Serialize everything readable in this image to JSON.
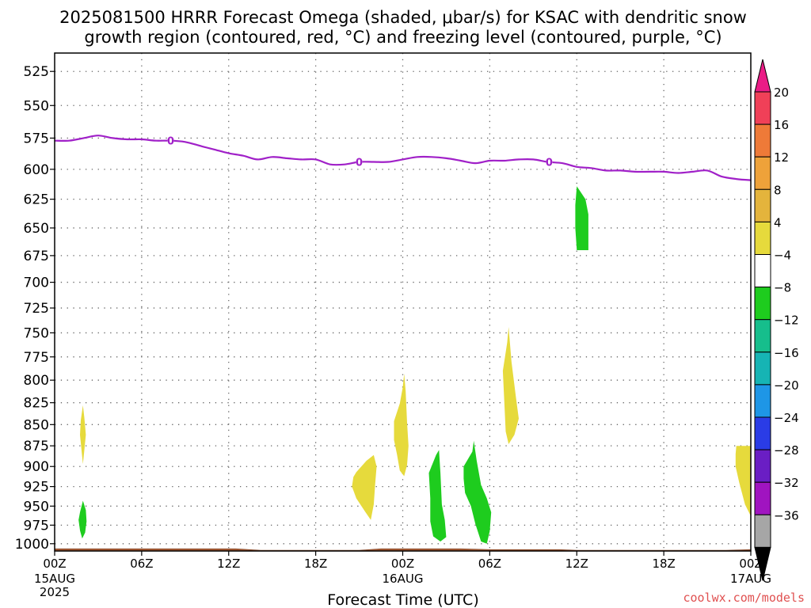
{
  "title_line1": "2025081500 HRRR Forecast Omega (shaded, μbar/s) for KSAC with dendritic snow",
  "title_line2": "growth region (contoured, red, °C) and freezing level (contoured, purple, °C)",
  "credit": "coolwx.com/models",
  "chart_data": {
    "type": "contour",
    "title": "2025081500 HRRR Forecast Omega (shaded, μbar/s) for KSAC with dendritic snow growth region (contoured, red, °C) and freezing level (contoured, purple, °C)",
    "xlabel": "Forecast Time (UTC)",
    "ylabel": "",
    "grid": true,
    "x_range_hours": [
      0,
      48
    ],
    "y_range_hPa": [
      1010,
      512
    ],
    "y_scale": "log",
    "x_ticks": [
      {
        "hour": 0,
        "label": "00Z",
        "sub": [
          "15AUG",
          "2025"
        ]
      },
      {
        "hour": 6,
        "label": "06Z",
        "sub": []
      },
      {
        "hour": 12,
        "label": "12Z",
        "sub": []
      },
      {
        "hour": 18,
        "label": "18Z",
        "sub": []
      },
      {
        "hour": 24,
        "label": "00Z",
        "sub": [
          "16AUG"
        ]
      },
      {
        "hour": 30,
        "label": "06Z",
        "sub": []
      },
      {
        "hour": 36,
        "label": "12Z",
        "sub": []
      },
      {
        "hour": 42,
        "label": "18Z",
        "sub": []
      },
      {
        "hour": 48,
        "label": "00Z",
        "sub": [
          "17AUG"
        ]
      }
    ],
    "y_ticks": [
      525,
      550,
      575,
      600,
      625,
      650,
      675,
      700,
      725,
      750,
      775,
      800,
      825,
      850,
      875,
      900,
      925,
      950,
      975,
      1000
    ],
    "colorbar": {
      "labels": [
        "20",
        "16",
        "12",
        "8",
        "4",
        "−4",
        "−8",
        "−12",
        "−16",
        "−20",
        "−24",
        "−28",
        "−32",
        "−36"
      ],
      "colors": [
        "#f04058",
        "#ee7a38",
        "#eea23a",
        "#e4b43c",
        "#e6da3c",
        "#ffffff",
        "#1ecc1e",
        "#16be8c",
        "#16b4b4",
        "#1e96e6",
        "#2a3ce6",
        "#6a1ec4",
        "#a014c0",
        "#a6a6a6"
      ],
      "top_arrow_color": "#ea1c86",
      "bottom_arrow_color": "#000000"
    },
    "freezing_level": {
      "color": "#a020c8",
      "label": "0",
      "label_hours": [
        8.0,
        21.0,
        34.1
      ],
      "points": [
        [
          0,
          577
        ],
        [
          1,
          577
        ],
        [
          2,
          575
        ],
        [
          3,
          573
        ],
        [
          4,
          575
        ],
        [
          5,
          576
        ],
        [
          6,
          576
        ],
        [
          7,
          577
        ],
        [
          8,
          577
        ],
        [
          9,
          578
        ],
        [
          10,
          581
        ],
        [
          11,
          584
        ],
        [
          12,
          587
        ],
        [
          13,
          589
        ],
        [
          14,
          592
        ],
        [
          15,
          590
        ],
        [
          16,
          591
        ],
        [
          17,
          592
        ],
        [
          18,
          592
        ],
        [
          19,
          596
        ],
        [
          20,
          596
        ],
        [
          21,
          594
        ],
        [
          22,
          594
        ],
        [
          23,
          594
        ],
        [
          24,
          592
        ],
        [
          25,
          590
        ],
        [
          26,
          590
        ],
        [
          27,
          591
        ],
        [
          28,
          593
        ],
        [
          29,
          595
        ],
        [
          30,
          593
        ],
        [
          31,
          593
        ],
        [
          32,
          592
        ],
        [
          33,
          592
        ],
        [
          34,
          594
        ],
        [
          35,
          595
        ],
        [
          36,
          598
        ],
        [
          37,
          599
        ],
        [
          38,
          601
        ],
        [
          39,
          601
        ],
        [
          40,
          602
        ],
        [
          41,
          602
        ],
        [
          42,
          602
        ],
        [
          43,
          603
        ],
        [
          44,
          602
        ],
        [
          45,
          601
        ],
        [
          46,
          606
        ],
        [
          47,
          608
        ],
        [
          48,
          609
        ]
      ]
    },
    "omega_areas": [
      {
        "category": "4",
        "color": "#e6da3c",
        "polygon": [
          [
            1.8,
            845
          ],
          [
            1.95,
            828
          ],
          [
            2.05,
            842
          ],
          [
            2.15,
            862
          ],
          [
            2.05,
            880
          ],
          [
            1.95,
            897
          ],
          [
            1.85,
            880
          ],
          [
            1.75,
            862
          ]
        ]
      },
      {
        "category": "-4",
        "color": "#1ecc1e",
        "polygon": [
          [
            1.75,
            958
          ],
          [
            1.95,
            943
          ],
          [
            2.15,
            955
          ],
          [
            2.2,
            970
          ],
          [
            2.1,
            985
          ],
          [
            1.9,
            993
          ],
          [
            1.75,
            982
          ],
          [
            1.65,
            968
          ]
        ]
      },
      {
        "category": "4",
        "color": "#e6da3c",
        "polygon": [
          [
            20.8,
            907
          ],
          [
            21.5,
            893
          ],
          [
            22.0,
            886
          ],
          [
            22.2,
            900
          ],
          [
            22.1,
            922
          ],
          [
            22.0,
            948
          ],
          [
            21.8,
            968
          ],
          [
            21.4,
            957
          ],
          [
            20.8,
            940
          ],
          [
            20.5,
            925
          ],
          [
            20.6,
            913
          ]
        ]
      },
      {
        "category": "4",
        "color": "#e6da3c",
        "polygon": [
          [
            23.4,
            846
          ],
          [
            23.8,
            826
          ],
          [
            24.0,
            808
          ],
          [
            24.1,
            793
          ],
          [
            24.2,
            812
          ],
          [
            24.3,
            848
          ],
          [
            24.4,
            875
          ],
          [
            24.3,
            898
          ],
          [
            24.1,
            912
          ],
          [
            23.8,
            905
          ],
          [
            23.6,
            885
          ],
          [
            23.4,
            868
          ]
        ]
      },
      {
        "category": "-4",
        "color": "#1ecc1e",
        "polygon": [
          [
            25.8,
            908
          ],
          [
            26.3,
            886
          ],
          [
            26.5,
            880
          ],
          [
            26.6,
            908
          ],
          [
            26.7,
            948
          ],
          [
            26.9,
            968
          ],
          [
            27.0,
            991
          ],
          [
            26.6,
            997
          ],
          [
            26.1,
            990
          ],
          [
            25.9,
            970
          ],
          [
            25.9,
            940
          ]
        ]
      },
      {
        "category": "-4",
        "color": "#1ecc1e",
        "polygon": [
          [
            28.2,
            900
          ],
          [
            28.8,
            882
          ],
          [
            28.9,
            869
          ],
          [
            29.1,
            893
          ],
          [
            29.4,
            923
          ],
          [
            29.8,
            940
          ],
          [
            30.1,
            958
          ],
          [
            30.0,
            983
          ],
          [
            29.8,
            1000
          ],
          [
            29.4,
            997
          ],
          [
            29.0,
            973
          ],
          [
            28.7,
            950
          ],
          [
            28.3,
            933
          ],
          [
            28.2,
            915
          ]
        ]
      },
      {
        "category": "4",
        "color": "#e6da3c",
        "polygon": [
          [
            30.9,
            790
          ],
          [
            31.2,
            760
          ],
          [
            31.3,
            744
          ],
          [
            31.5,
            780
          ],
          [
            31.8,
            818
          ],
          [
            32.0,
            843
          ],
          [
            31.7,
            862
          ],
          [
            31.3,
            873
          ],
          [
            31.1,
            858
          ],
          [
            31.0,
            823
          ]
        ]
      },
      {
        "category": "-4",
        "color": "#1ecc1e",
        "polygon": [
          [
            35.9,
            630
          ],
          [
            36.0,
            614
          ],
          [
            36.6,
            625
          ],
          [
            36.8,
            638
          ],
          [
            36.8,
            670
          ],
          [
            36.0,
            670
          ],
          [
            35.9,
            650
          ]
        ]
      },
      {
        "category": "4",
        "color": "#e6da3c",
        "polygon": [
          [
            47.0,
            875
          ],
          [
            48.0,
            875
          ],
          [
            48.0,
            963
          ],
          [
            47.6,
            948
          ],
          [
            47.2,
            920
          ],
          [
            46.95,
            900
          ],
          [
            46.95,
            885
          ]
        ]
      }
    ],
    "terrain": {
      "color": "#a65a32",
      "surface_pressure": [
        [
          0,
          1007
        ],
        [
          7,
          1007
        ],
        [
          12.5,
          1007
        ],
        [
          14.2,
          1009
        ],
        [
          17,
          1009
        ],
        [
          21,
          1009
        ],
        [
          22.5,
          1007
        ],
        [
          28,
          1007
        ],
        [
          30,
          1008
        ],
        [
          34.8,
          1008
        ],
        [
          36,
          1009
        ],
        [
          46.3,
          1009
        ],
        [
          48,
          1008
        ]
      ]
    }
  }
}
